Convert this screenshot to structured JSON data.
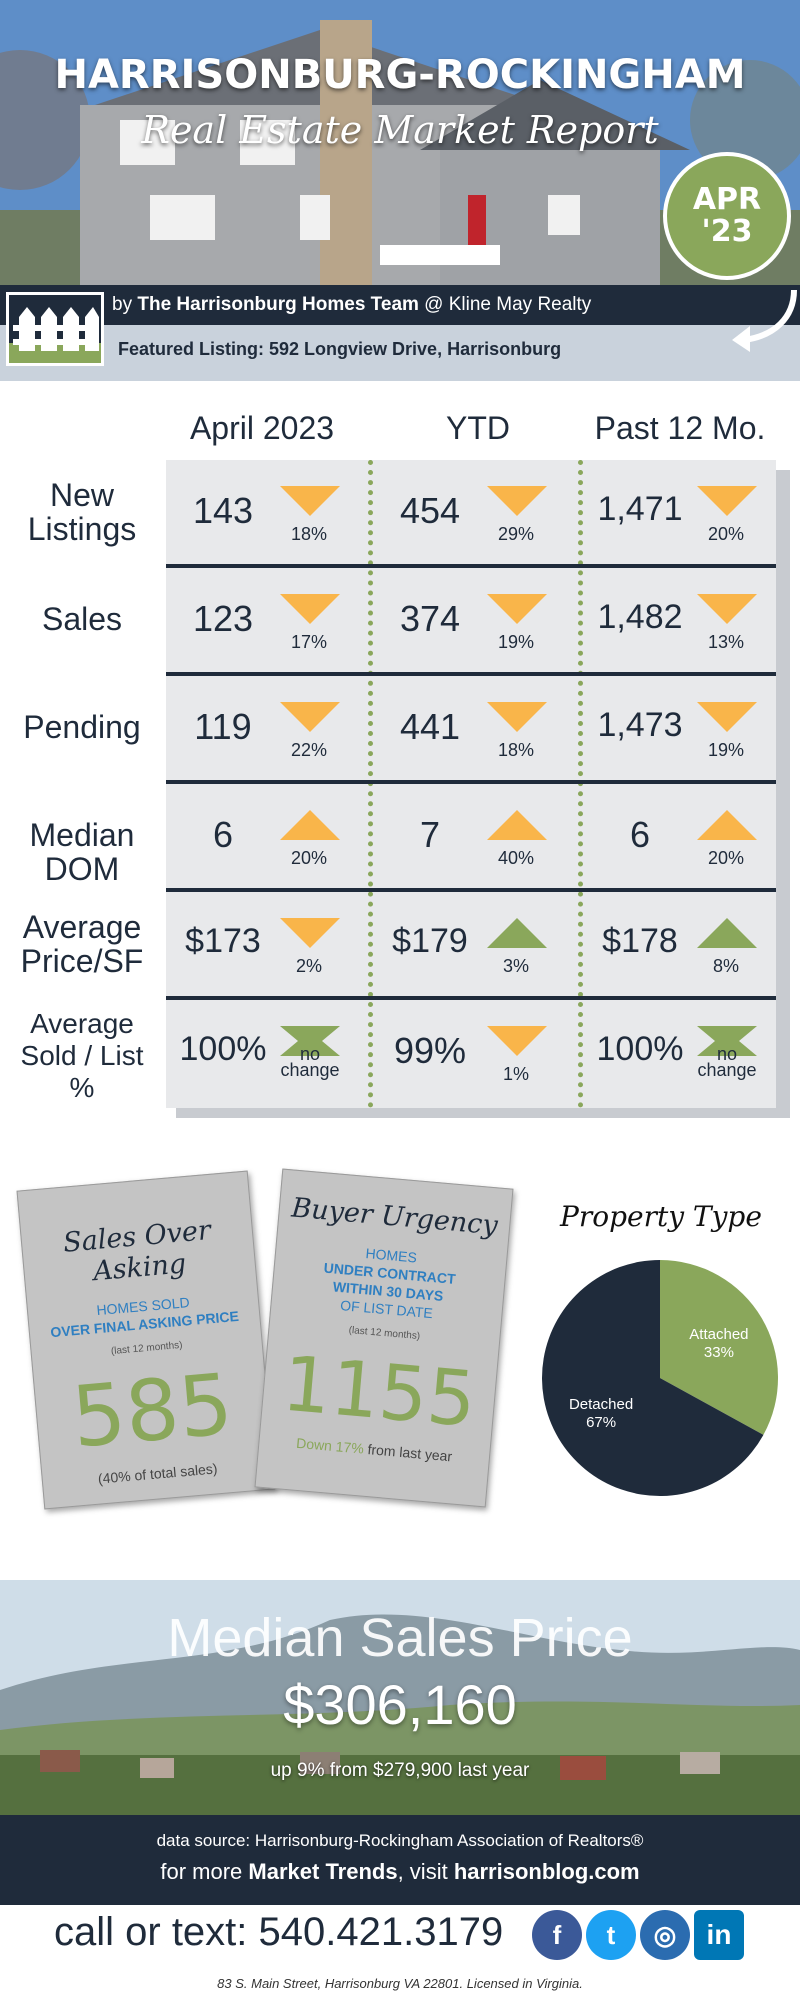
{
  "hero": {
    "title": "HARRISONBURG-ROCKINGHAM",
    "subtitle": "Real Estate Market Report",
    "badge_month": "APR",
    "badge_year": "'23"
  },
  "byline": {
    "prefix": "by ",
    "team": "The Harrisonburg Homes Team",
    "suffix": " @ Kline May Realty"
  },
  "featured": {
    "text": "Featured Listing:  592 Longview Drive, Harrisonburg"
  },
  "stats": {
    "columns": [
      "April 2023",
      "YTD",
      "Past 12 Mo."
    ],
    "rows": [
      {
        "label": "New Listings",
        "cells": [
          {
            "value": "143",
            "change": "18%",
            "direction": "down"
          },
          {
            "value": "454",
            "change": "29%",
            "direction": "down"
          },
          {
            "value": "1,471",
            "change": "20%",
            "direction": "down"
          }
        ]
      },
      {
        "label": "Sales",
        "cells": [
          {
            "value": "123",
            "change": "17%",
            "direction": "down"
          },
          {
            "value": "374",
            "change": "19%",
            "direction": "down"
          },
          {
            "value": "1,482",
            "change": "13%",
            "direction": "down"
          }
        ]
      },
      {
        "label": "Pending",
        "cells": [
          {
            "value": "119",
            "change": "22%",
            "direction": "down"
          },
          {
            "value": "441",
            "change": "18%",
            "direction": "down"
          },
          {
            "value": "1,473",
            "change": "19%",
            "direction": "down"
          }
        ]
      },
      {
        "label": "Median DOM",
        "cells": [
          {
            "value": "6",
            "change": "20%",
            "direction": "up-orange"
          },
          {
            "value": "7",
            "change": "40%",
            "direction": "up-orange"
          },
          {
            "value": "6",
            "change": "20%",
            "direction": "up-orange"
          }
        ]
      },
      {
        "label": "Average Price/SF",
        "cells": [
          {
            "value": "$173",
            "change": "2%",
            "direction": "down"
          },
          {
            "value": "$179",
            "change": "3%",
            "direction": "up-green"
          },
          {
            "value": "$178",
            "change": "8%",
            "direction": "up-green"
          }
        ]
      },
      {
        "label": "Average Sold / List %",
        "cells": [
          {
            "value": "100%",
            "change": "no change",
            "direction": "flat"
          },
          {
            "value": "99%",
            "change": "1%",
            "direction": "down"
          },
          {
            "value": "100%",
            "change": "no change",
            "direction": "flat"
          }
        ]
      }
    ]
  },
  "card_asking": {
    "title": "Sales Over Asking",
    "line1": "HOMES SOLD",
    "line2": "OVER FINAL ASKING PRICE",
    "period": "(last 12 months)",
    "value": "585",
    "note": "(40% of total sales)"
  },
  "card_urgency": {
    "title": "Buyer Urgency",
    "line1": "HOMES",
    "line2": "UNDER CONTRACT",
    "line3": "WITHIN 30 DAYS",
    "line4": "OF LIST DATE",
    "period": "(last 12 months)",
    "value": "1155",
    "change_green": "Down 17%",
    "change_rest": " from last year"
  },
  "chart_data": {
    "type": "pie",
    "title": "Property Type",
    "categories": [
      "Attached",
      "Detached"
    ],
    "values": [
      33,
      67
    ],
    "labels": [
      "33%",
      "67%"
    ],
    "colors": [
      "#8aa75b",
      "#1f2b3b"
    ]
  },
  "median": {
    "title": "Median Sales Price",
    "value": "$306,160",
    "change": "up 9% from $279,900 last year"
  },
  "footer": {
    "source": "data source: Harrisonburg-Rockingham Association of Realtors®",
    "trend_prefix": "for more ",
    "trend_bold": "Market Trends",
    "trend_mid": ", visit ",
    "trend_site": "harrisonblog.com",
    "call": "call or text: 540.421.3179",
    "address": "83 S. Main Street, Harrisonburg VA 22801. Licensed in Virginia."
  },
  "social": [
    {
      "icon": "facebook-icon",
      "glyph": "f",
      "color": "#3b5998"
    },
    {
      "icon": "twitter-icon",
      "glyph": "t",
      "color": "#1da1f2"
    },
    {
      "icon": "instagram-icon",
      "glyph": "◎",
      "color": "#2b6cb0"
    },
    {
      "icon": "linkedin-icon",
      "glyph": "in",
      "color": "#0077b5"
    }
  ],
  "colors": {
    "navy": "#1f2b3b",
    "green": "#8aa75b",
    "orange": "#f9b54a",
    "blue": "#2f7fc1"
  }
}
